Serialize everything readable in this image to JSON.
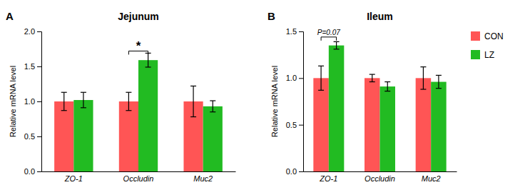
{
  "chart_data": [
    {
      "type": "bar",
      "title": "Jejunum",
      "panel_label": "A",
      "categories": [
        "ZO-1",
        "Occludin",
        "Muc2"
      ],
      "series": [
        {
          "name": "CON",
          "color": "#FF5555",
          "values": [
            1.0,
            1.0,
            1.0
          ],
          "errors": [
            0.13,
            0.13,
            0.22
          ]
        },
        {
          "name": "LZ",
          "color": "#22BB22",
          "values": [
            1.02,
            1.59,
            0.93
          ],
          "errors": [
            0.11,
            0.1,
            0.08
          ]
        }
      ],
      "ylim": [
        0,
        2.0
      ],
      "yticks": [
        {
          "value": 0.0,
          "label": "0.0"
        },
        0.5,
        {
          "value": 1.0,
          "label": "1.0"
        },
        1.5,
        {
          "value": 2.0,
          "label": "2.0"
        }
      ],
      "ylabel": "Relative mRNA level",
      "annotations": [
        {
          "text": "*",
          "category": "Occludin",
          "y": 1.72
        }
      ]
    },
    {
      "type": "bar",
      "title": "Ileum",
      "panel_label": "B",
      "categories": [
        "ZO-1",
        "Occludin",
        "Muc2"
      ],
      "series": [
        {
          "name": "CON",
          "color": "#FF5555",
          "values": [
            1.0,
            1.0,
            1.0
          ],
          "errors": [
            0.13,
            0.04,
            0.12
          ]
        },
        {
          "name": "LZ",
          "color": "#22BB22",
          "values": [
            1.35,
            0.91,
            0.96
          ],
          "errors": [
            0.04,
            0.05,
            0.07
          ]
        }
      ],
      "ylim": [
        0,
        1.5
      ],
      "yticks": [
        {
          "value": 0.0,
          "label": "0.0"
        },
        0.5,
        {
          "value": 1.0,
          "label": "1.0"
        },
        1.5
      ],
      "ylabel": "Relative mRNA level",
      "annotations": [
        {
          "text": "P=0.07",
          "category": "ZO-1",
          "y": 1.44
        }
      ],
      "legend": "right"
    }
  ]
}
